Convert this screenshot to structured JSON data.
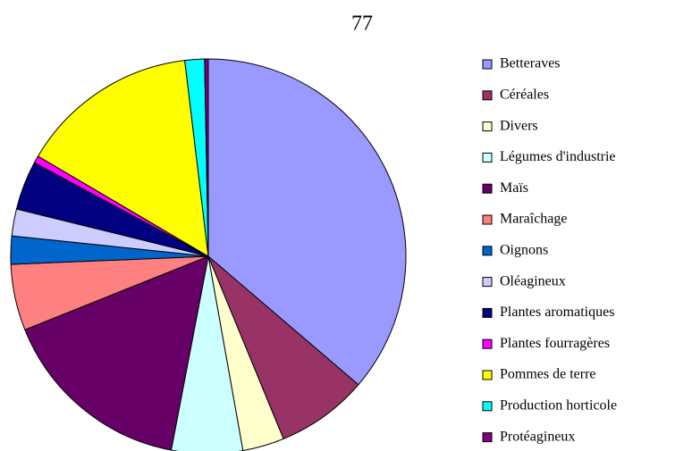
{
  "chart_data": {
    "type": "pie",
    "title": "77",
    "categories": [
      "Betteraves",
      "Céréales",
      "Divers",
      "Légumes d'industrie",
      "Maïs",
      "Maraîchage",
      "Oignons",
      "Oléagineux",
      "Plantes aromatiques",
      "Plantes fourragères",
      "Pommes de terre",
      "Production horticole",
      "Protéagineux"
    ],
    "values": [
      36.2,
      7.5,
      3.4,
      5.8,
      15.9,
      5.4,
      2.3,
      2.2,
      4.0,
      0.6,
      14.6,
      1.6,
      0.3
    ],
    "colors": [
      "#9999ff",
      "#993366",
      "#ffffcc",
      "#ccffff",
      "#660066",
      "#ff8080",
      "#0066cc",
      "#ccccff",
      "#000080",
      "#ff00ff",
      "#ffff00",
      "#00ffff",
      "#800080"
    ],
    "legend": "right"
  }
}
